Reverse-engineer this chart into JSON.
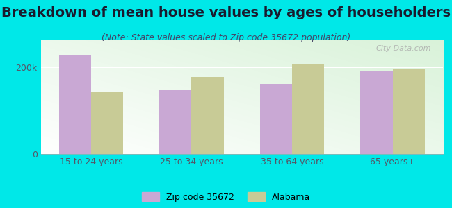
{
  "title": "Breakdown of mean house values by ages of householders",
  "subtitle": "(Note: State values scaled to Zip code 35672 population)",
  "categories": [
    "15 to 24 years",
    "25 to 34 years",
    "35 to 64 years",
    "65 years+"
  ],
  "zip_values": [
    230000,
    148000,
    163000,
    192000
  ],
  "alabama_values": [
    143000,
    178000,
    208000,
    196000
  ],
  "zip_color": "#c9a8d4",
  "alabama_color": "#c8cb96",
  "background_outer": "#00e8e8",
  "ytick_labels": [
    "0",
    "200k"
  ],
  "ytick_values": [
    0,
    200000
  ],
  "ylim": [
    0,
    265000
  ],
  "legend_zip_label": "Zip code 35672",
  "legend_alabama_label": "Alabama",
  "title_fontsize": 14,
  "subtitle_fontsize": 9,
  "axis_label_fontsize": 9,
  "bar_width": 0.32,
  "watermark": "City-Data.com"
}
